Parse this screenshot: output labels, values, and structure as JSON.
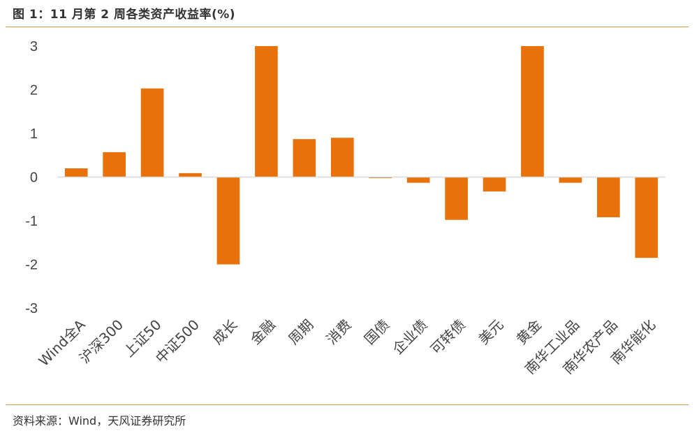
{
  "header": {
    "title": "图 1：11 月第 2 周各类资产收益率(%)"
  },
  "footer": {
    "source": "资料来源：Wind，天风证券研究所"
  },
  "colors": {
    "bar": "#E8710A",
    "rule": "#C89A46",
    "axis": "#D9D9D9"
  },
  "chart_data": {
    "type": "bar",
    "title": "",
    "xlabel": "",
    "ylabel": "",
    "ylim": [
      -3,
      3
    ],
    "yticks": [
      3,
      2,
      1,
      0,
      -1,
      -2,
      -3
    ],
    "categories": [
      "Wind全A",
      "沪深300",
      "上证50",
      "中证500",
      "成长",
      "金融",
      "周期",
      "消费",
      "国债",
      "企业债",
      "可转债",
      "美元",
      "黄金",
      "南华工业品",
      "南华农产品",
      "南华能化"
    ],
    "values": [
      0.2,
      0.57,
      2.03,
      0.09,
      -2.0,
      3.0,
      0.87,
      0.9,
      -0.02,
      -0.13,
      -0.98,
      -0.33,
      3.0,
      -0.13,
      -0.92,
      -1.85
    ],
    "grid": false,
    "legend": "none"
  }
}
